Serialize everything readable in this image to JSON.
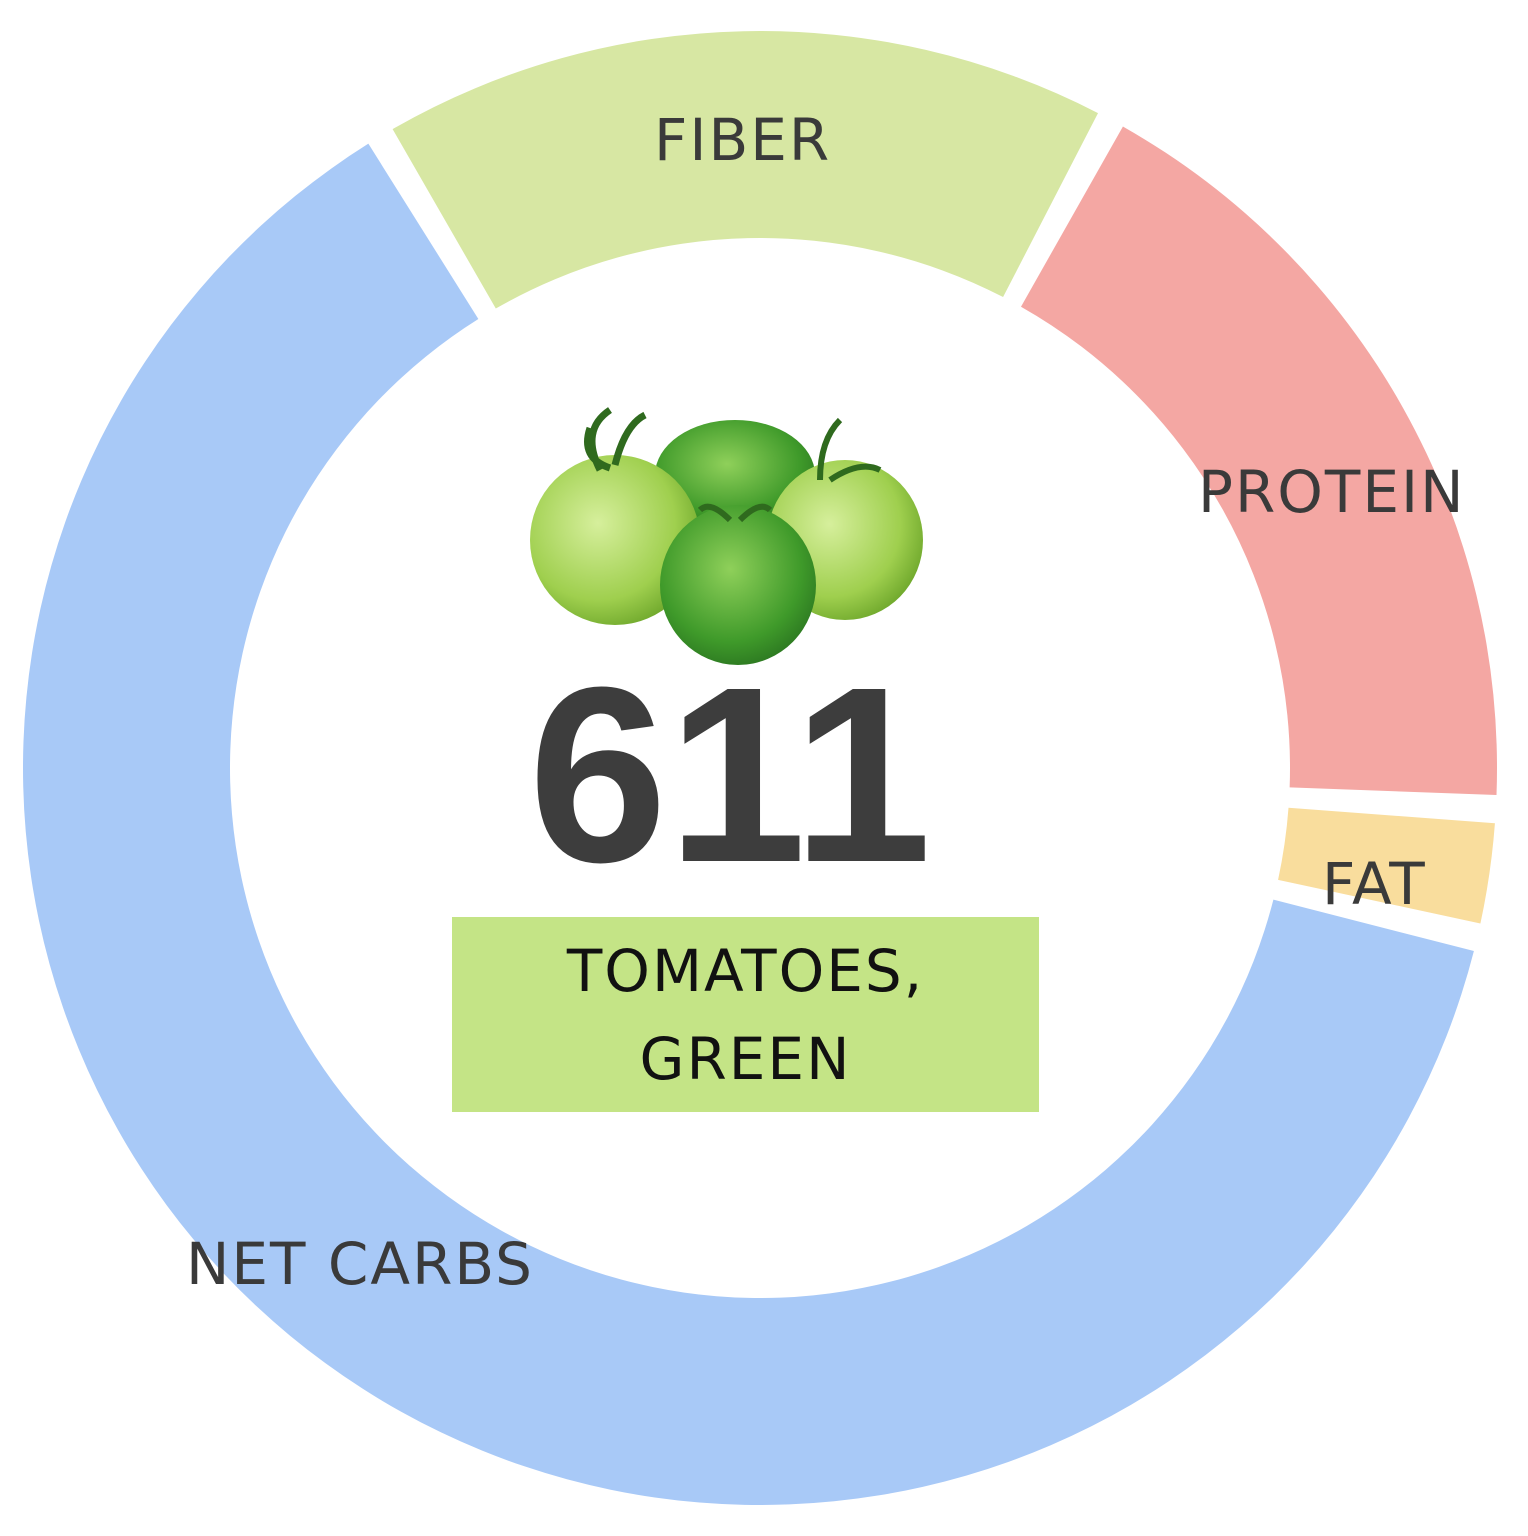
{
  "chart_data": {
    "type": "pie",
    "donut": true,
    "center_value": "611",
    "center_label_lines": [
      "TOMATOES,",
      "GREEN"
    ],
    "slices": [
      {
        "label": "FIBER",
        "value": 16.5,
        "color": "#d7e7a3"
      },
      {
        "label": "PROTEIN",
        "value": 18.0,
        "color": "#f4a7a3"
      },
      {
        "label": "FAT",
        "value": 2.8,
        "color": "#f9dd9d"
      },
      {
        "label": "NET CARBS",
        "value": 62.7,
        "color": "#a8c9f7"
      }
    ],
    "label_color": "#c4e486",
    "image": "green-tomatoes"
  }
}
